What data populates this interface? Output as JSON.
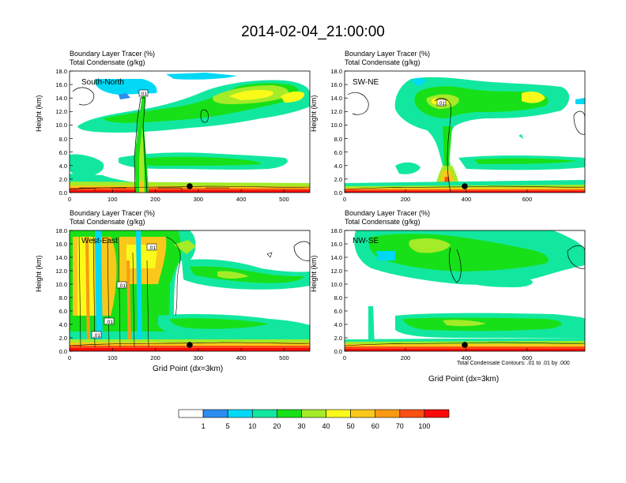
{
  "title": "2014-02-04_21:00:00",
  "panels": [
    {
      "name": "South-North",
      "line1": "Boundary Layer Tracer    (%)",
      "line2": "Total Condensate    (g/kg)",
      "box_label": ".01",
      "xticks": [
        "0",
        "100",
        "200",
        "300",
        "400",
        "500"
      ],
      "xmax": 560
    },
    {
      "name": "SW-NE",
      "line1": "Boundary Layer Tracer    (%)",
      "line2": "Total Condensate    (g/kg)",
      "box_label": ".01",
      "xticks": [
        "0",
        "200",
        "400",
        "600"
      ],
      "xmax": 790
    },
    {
      "name": "West-East",
      "line1": "Boundary Layer Tracer    (%)",
      "line2": "Total Condensate    (g/kg)",
      "box_labels": [
        ".01",
        ".01",
        ".01",
        ".01"
      ],
      "xticks": [
        "0",
        "100",
        "200",
        "300",
        "400",
        "500"
      ],
      "xmax": 560
    },
    {
      "name": "NW-SE",
      "line1": "Boundary Layer Tracer    (%)",
      "line2": "Total Condensate    (g/kg)",
      "xticks": [
        "0",
        "200",
        "400",
        "600"
      ],
      "xmax": 790
    }
  ],
  "yticks": [
    "0.0",
    "2.0",
    "4.0",
    "6.0",
    "8.0",
    "10.0",
    "12.0",
    "14.0",
    "16.0",
    "18.0"
  ],
  "ylabel": "Height (km)",
  "xlabel": "Grid Point (dx=3km)",
  "contour_note": "Total Condensate Contours: .01 to .01 by .000",
  "colorbar": {
    "labels": [
      "1",
      "5",
      "10",
      "20",
      "30",
      "40",
      "50",
      "60",
      "70",
      "100"
    ],
    "colors": [
      "#ffffff",
      "#2d8cf0",
      "#00d8f5",
      "#12e7a0",
      "#18e018",
      "#a4eb28",
      "#fafa1a",
      "#fac81a",
      "#fa9a14",
      "#fa5014",
      "#fa0a0a"
    ]
  },
  "chart_data": [
    {
      "type": "heatmap",
      "title": "South-North",
      "ylabel": "Height (km)",
      "ylim": [
        0,
        18
      ],
      "xlim": [
        0,
        560
      ],
      "xticks": [
        0,
        100,
        200,
        300,
        400,
        500
      ]
    },
    {
      "type": "heatmap",
      "title": "SW-NE",
      "ylabel": "Height (km)",
      "ylim": [
        0,
        18
      ],
      "xlim": [
        0,
        790
      ],
      "xticks": [
        0,
        200,
        400,
        600
      ]
    },
    {
      "type": "heatmap",
      "title": "West-East",
      "xlabel": "Grid Point (dx=3km)",
      "ylabel": "Height (km)",
      "ylim": [
        0,
        18
      ],
      "xlim": [
        0,
        560
      ],
      "xticks": [
        0,
        100,
        200,
        300,
        400,
        500
      ]
    },
    {
      "type": "heatmap",
      "title": "NW-SE",
      "xlabel": "Grid Point (dx=3km)",
      "ylabel": "Height (km)",
      "ylim": [
        0,
        18
      ],
      "xlim": [
        0,
        790
      ],
      "xticks": [
        0,
        200,
        400,
        600
      ]
    }
  ]
}
